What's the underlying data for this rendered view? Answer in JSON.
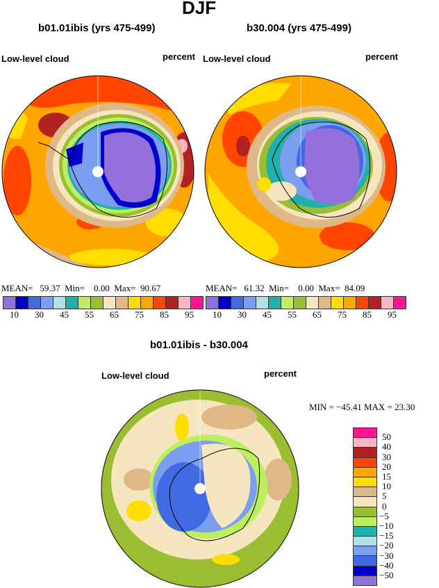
{
  "title": "DJF",
  "panels": [
    {
      "title": "b01.01ibis (yrs 475-499)",
      "left_label": "Low-level cloud",
      "right_label": "percent",
      "stats": {
        "mean_label": "MEAN=",
        "mean": "59.37",
        "min_label": "Min=",
        "min": "0.00",
        "max_label": "Max=",
        "max": "90.67"
      }
    },
    {
      "title": "b30.004 (yrs 475-499)",
      "left_label": "Low-level cloud",
      "right_label": "percent",
      "stats": {
        "mean_label": "MEAN=",
        "mean": "61.32",
        "min_label": "Min=",
        "min": "0.00",
        "max_label": "Max=",
        "max": "84.09"
      }
    }
  ],
  "colorbar": {
    "colors": [
      "#9370DB",
      "#0000CD",
      "#4169E1",
      "#7B9EF0",
      "#B0E0E6",
      "#20B2AA",
      "#BDEE5F",
      "#9ABD32",
      "#F5E6C0",
      "#DEB887",
      "#FFDD00",
      "#FFA500",
      "#FF4500",
      "#B22222",
      "#FFB6C1",
      "#FF1493"
    ],
    "labels": [
      "10",
      "30",
      "45",
      "55",
      "65",
      "75",
      "85",
      "95"
    ]
  },
  "diff": {
    "title": "b01.01ibis - b30.004",
    "left_label": "Low-level cloud",
    "right_label": "percent",
    "stats": "MIN = −45.41  MAX =  23.30",
    "colorbar_labels": [
      "50",
      "40",
      "30",
      "20",
      "15",
      "10",
      "5",
      "0",
      "−5",
      "−10",
      "−15",
      "−20",
      "−30",
      "−40",
      "−50"
    ]
  }
}
